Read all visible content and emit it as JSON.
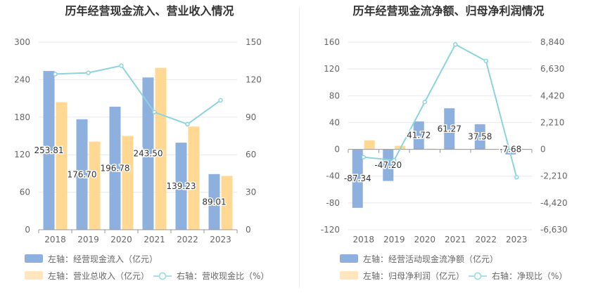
{
  "chart_data": [
    {
      "type": "bar",
      "title": "历年经营现金流入、营业收入情况",
      "categories": [
        "2018",
        "2019",
        "2020",
        "2021",
        "2022",
        "2023"
      ],
      "left_axis": {
        "ticks": [
          "0",
          "60",
          "120",
          "180",
          "240",
          "300"
        ],
        "ylim": [
          0,
          300
        ]
      },
      "right_axis": {
        "ticks": [
          "0",
          "30",
          "60",
          "90",
          "120",
          "150"
        ],
        "ylim": [
          0,
          150
        ]
      },
      "series": [
        {
          "name": "左轴：经营现金流入（亿元）",
          "type": "bar",
          "axis": "left",
          "color": "#8eb0de",
          "values": [
            253.81,
            176.7,
            196.78,
            243.5,
            139.23,
            89.01
          ],
          "labels": [
            "253.81",
            "176.70",
            "196.78",
            "243.50",
            "139.23",
            "89.01"
          ]
        },
        {
          "name": "左轴：营业总收入（亿元）",
          "type": "bar",
          "axis": "left",
          "color": "#ffd993",
          "values": [
            204,
            141,
            150,
            259,
            165,
            86
          ]
        },
        {
          "name": "右轴：营收现金比（%）",
          "type": "line",
          "axis": "right",
          "color": "#8bd4dd",
          "values": [
            124.5,
            125.5,
            131.2,
            94.0,
            84.4,
            103.5
          ]
        }
      ]
    },
    {
      "type": "bar",
      "title": "历年经营现金流净额、归母净利润情况",
      "categories": [
        "2018",
        "2019",
        "2020",
        "2021",
        "2022",
        "2023"
      ],
      "left_axis": {
        "ticks": [
          "-120",
          "-80",
          "-40",
          "0",
          "40",
          "80",
          "120",
          "160"
        ],
        "ylim": [
          -120,
          160
        ]
      },
      "right_axis": {
        "ticks": [
          "-6,630",
          "-4,420",
          "-2,210",
          "0",
          "2,210",
          "4,420",
          "6,630",
          "8,840"
        ],
        "ylim": [
          -6630,
          8840
        ]
      },
      "series": [
        {
          "name": "左轴：经营活动现金流净额（亿元）",
          "type": "bar",
          "axis": "left",
          "color": "#8eb0de",
          "values": [
            -87.34,
            -47.2,
            41.72,
            61.27,
            37.58,
            -7.68
          ],
          "labels": [
            "-87.34",
            "-47.20",
            "41.72",
            "61.27",
            "37.58",
            "-7.68"
          ]
        },
        {
          "name": "左轴：归母净利润（亿元）",
          "type": "bar",
          "axis": "left",
          "color": "#ffd993",
          "values": [
            13.5,
            5.2,
            1.0,
            0.4,
            0.4,
            0.3
          ]
        },
        {
          "name": "右轴：净现比（%）",
          "type": "line",
          "axis": "right",
          "color": "#8bd4dd",
          "values": [
            -646,
            -900,
            3900,
            8650,
            7290,
            -2300
          ]
        }
      ]
    }
  ]
}
